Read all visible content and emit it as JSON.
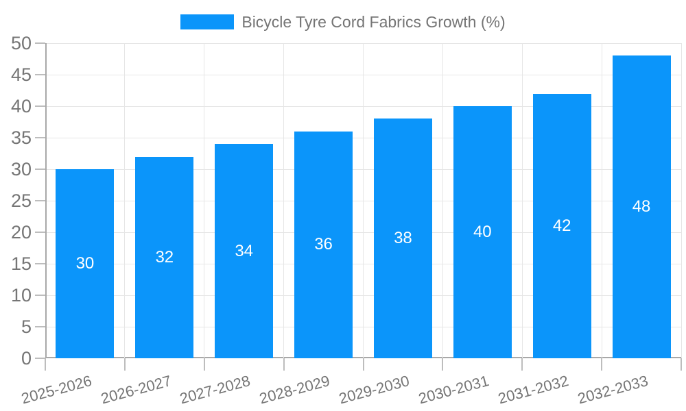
{
  "chart_data": {
    "type": "bar",
    "title": "",
    "legend": "Bicycle Tyre Cord Fabrics Growth (%)",
    "legend_position": "top-center",
    "categories": [
      "2025-2026",
      "2026-2027",
      "2027-2028",
      "2028-2029",
      "2029-2030",
      "2030-2031",
      "2031-2032",
      "2032-2033"
    ],
    "values": [
      30,
      32,
      34,
      36,
      38,
      40,
      42,
      48
    ],
    "yticks": [
      0,
      5,
      10,
      15,
      20,
      25,
      30,
      35,
      40,
      45,
      50
    ],
    "ylim": [
      0,
      50
    ],
    "xlabel": "",
    "ylabel": "",
    "grid": true,
    "bar_labels_inside_centered": true,
    "x_labels_rotation_deg": -15,
    "colors": {
      "bar": "#0b95fa",
      "bar_label": "#ffffff",
      "text": "#757575",
      "grid": "#e6e6e6",
      "axis": "#a8a8a8",
      "tick": "#bdbdbd",
      "background": "#ffffff"
    }
  }
}
